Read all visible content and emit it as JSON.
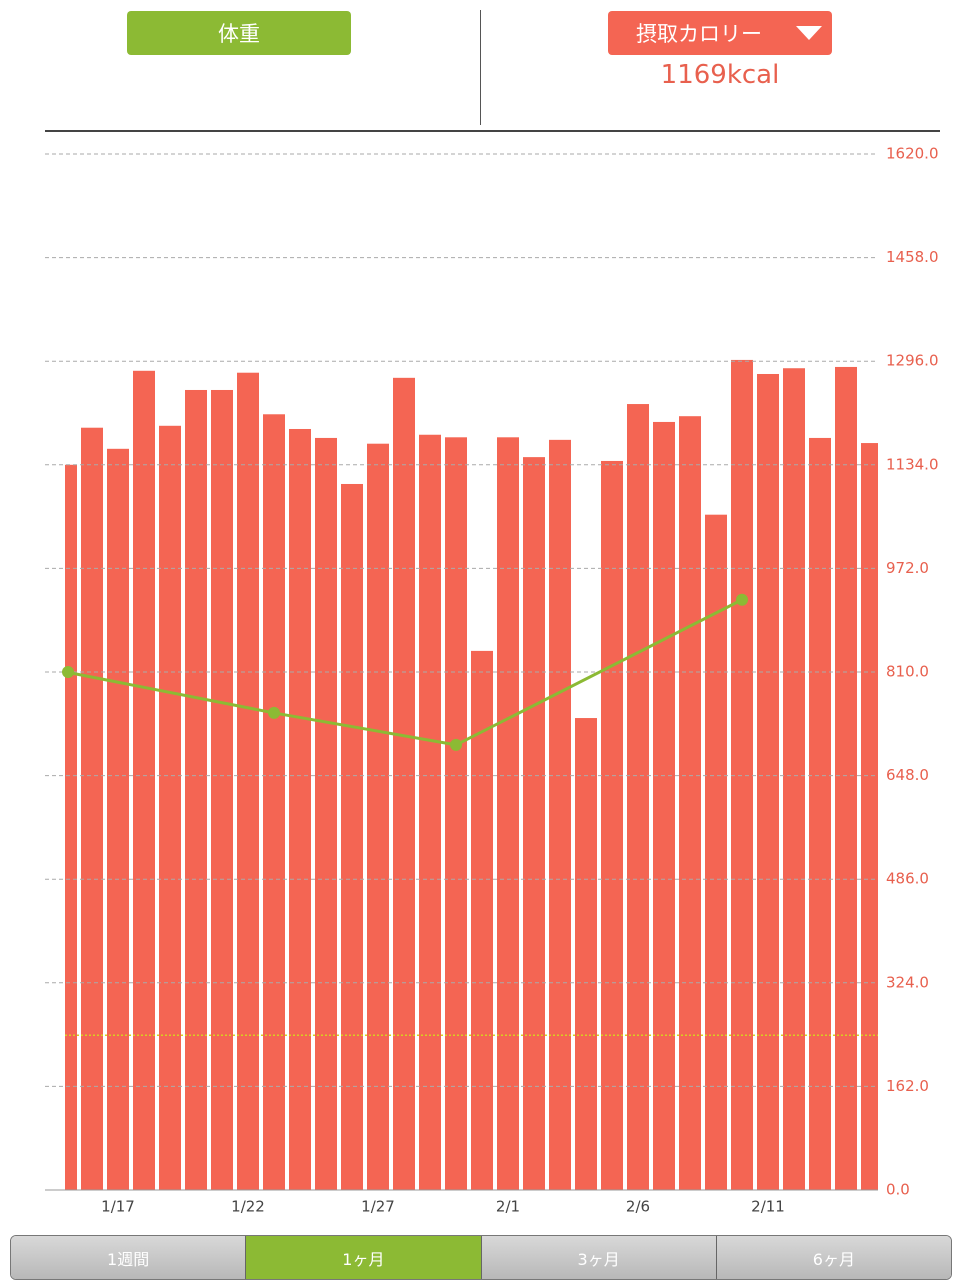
{
  "header": {
    "left_button": "体重",
    "right_button": "摂取カロリー",
    "right_value": "1169kcal"
  },
  "chart_data": {
    "type": "bar",
    "categories": [
      null,
      null,
      "1/17",
      null,
      null,
      null,
      null,
      "1/22",
      null,
      null,
      null,
      null,
      "1/27",
      null,
      null,
      null,
      null,
      "2/1",
      null,
      null,
      null,
      null,
      "2/6",
      null,
      null,
      null,
      null,
      "2/11",
      null,
      null,
      null,
      null
    ],
    "series": [
      {
        "color": "#f46553",
        "values": [
          1134,
          1192,
          1159,
          1281,
          1195,
          1251,
          1251,
          1278,
          1213,
          1190,
          1176,
          1104,
          1167,
          1270,
          1181,
          1177,
          843,
          1177,
          1146,
          1173,
          738,
          1140,
          1229,
          1201,
          1210,
          1056,
          1298,
          1276,
          1285,
          1176,
          1287,
          1168
        ]
      },
      {
        "type": "line",
        "color": "#8cba34",
        "values": [
          810,
          null,
          null,
          null,
          null,
          null,
          null,
          null,
          746,
          null,
          null,
          null,
          null,
          null,
          null,
          696,
          null,
          null,
          null,
          null,
          null,
          null,
          null,
          null,
          null,
          null,
          923,
          null,
          null,
          null,
          null,
          null
        ]
      }
    ],
    "reference_line": {
      "value": 242,
      "color": "#d8d020"
    },
    "ylim": [
      0,
      1620
    ],
    "yticks": [
      {
        "value": 0,
        "label": "0.0"
      },
      {
        "value": 162,
        "label": "162.0"
      },
      {
        "value": 324,
        "label": "324.0"
      },
      {
        "value": 486,
        "label": "486.0"
      },
      {
        "value": 648,
        "label": "648.0"
      },
      {
        "value": 810,
        "label": "810.0"
      },
      {
        "value": 972,
        "label": "972.0"
      },
      {
        "value": 1134,
        "label": "1134.0"
      },
      {
        "value": 1296,
        "label": "1296.0"
      },
      {
        "value": 1458,
        "label": "1458.0"
      },
      {
        "value": 1620,
        "label": "1620.0"
      }
    ],
    "grid": true
  },
  "tabs": {
    "items": [
      "1週間",
      "1ヶ月",
      "3ヶ月",
      "6ヶ月"
    ],
    "selected": 1
  }
}
